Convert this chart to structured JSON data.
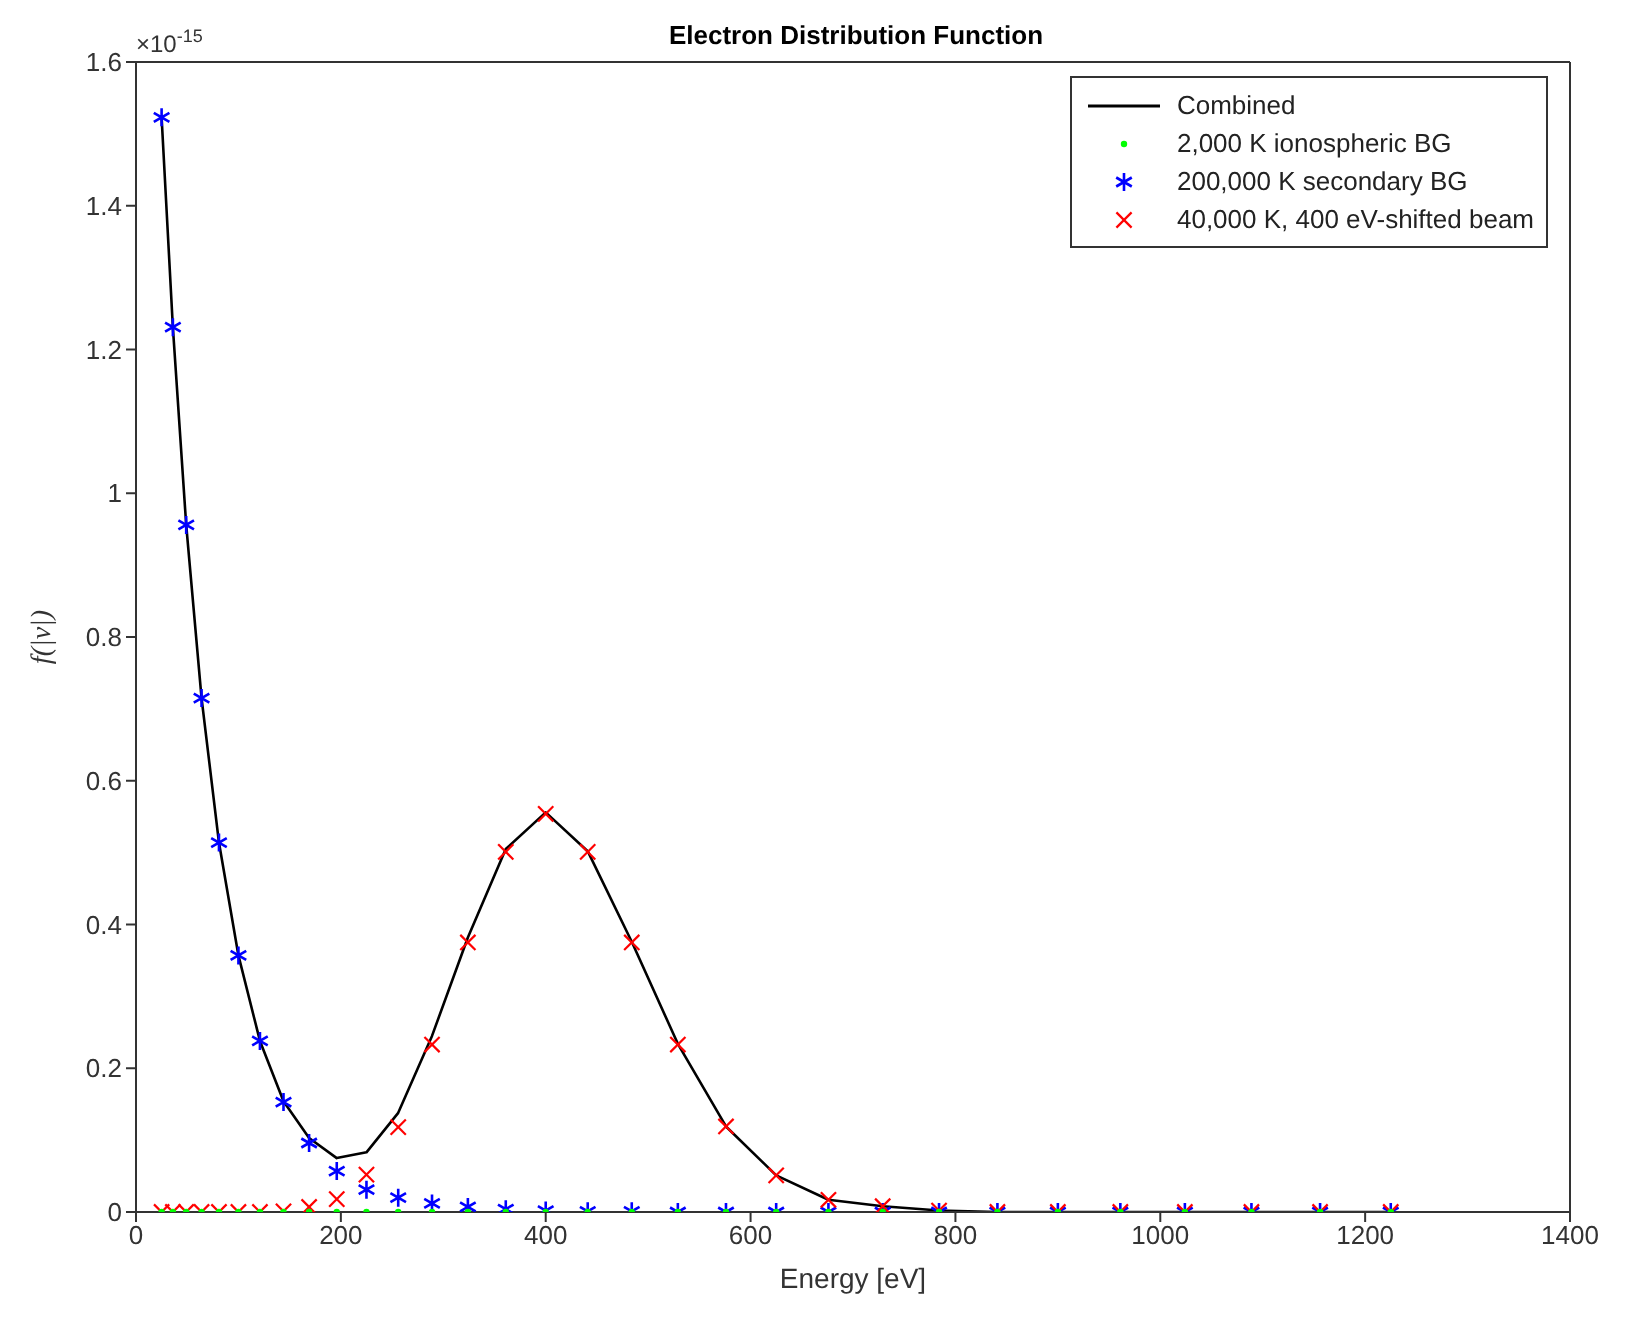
{
  "chart_data": {
    "type": "line",
    "title": "Electron Distribution Function",
    "xlabel": "Energy [eV]",
    "ylabel": "f(|v|)",
    "annotations": [
      "×10$^{-15}$"
    ],
    "x": [
      25,
      36,
      49,
      64,
      81,
      100,
      121,
      144,
      169,
      196,
      225,
      256,
      289,
      324,
      361,
      400,
      441,
      484,
      529,
      576,
      625,
      676,
      729,
      784,
      841,
      900,
      961,
      1024,
      1089,
      1156,
      1225
    ],
    "series": [
      {
        "name": "Combined",
        "color": "#000000",
        "values": [
          1.523,
          1.231,
          0.956,
          0.715,
          0.514,
          0.357,
          0.238,
          0.154,
          0.103,
          0.075,
          0.083,
          0.138,
          0.245,
          0.382,
          0.505,
          0.556,
          0.502,
          0.376,
          0.234,
          0.119,
          0.051,
          0.017,
          0.008,
          0.002,
          0,
          0,
          0,
          0,
          0,
          0,
          0
        ]
      },
      {
        "name": "2,000 K ionospheric BG",
        "type": "scatter",
        "marker": "circle",
        "color": "#00ff00",
        "values": [
          0,
          0,
          0,
          0,
          0,
          0,
          0,
          0,
          0,
          0,
          0,
          0,
          0,
          0,
          0,
          0,
          0,
          0,
          0,
          0,
          0,
          0,
          0,
          0,
          0,
          0,
          0,
          0,
          0,
          0,
          0
        ]
      },
      {
        "name": "200,000 K secondary BG",
        "type": "scatter",
        "color": "#0000ff",
        "values": [
          1.523,
          1.231,
          0.956,
          0.715,
          0.514,
          0.357,
          0.238,
          0.153,
          0.096,
          0.057,
          0.031,
          0.02,
          0.012,
          0.007,
          0.004,
          0.002,
          0.001,
          0.001,
          0,
          0,
          0,
          0,
          0,
          0,
          0,
          0,
          0,
          0,
          0,
          0,
          0
        ]
      },
      {
        "name": "40,000 K, 400 eV-shifted beam",
        "type": "scatter",
        "marker": "cross",
        "color": "#ff0000",
        "values": [
          0,
          0,
          0,
          0,
          0,
          0,
          0,
          0.001,
          0.007,
          0.018,
          0.052,
          0.118,
          0.233,
          0.375,
          0.501,
          0.554,
          0.501,
          0.375,
          0.233,
          0.119,
          0.051,
          0.017,
          0.008,
          0.002,
          0,
          0,
          0,
          0,
          0,
          0,
          0
        ]
      }
    ],
    "xlim": [
      0,
      1400
    ],
    "xticks": [
      0,
      200,
      400,
      600,
      800,
      1000,
      1200,
      1400
    ],
    "ylim": [
      0,
      1.6
    ],
    "yticks": [
      0,
      0.2,
      0.4,
      0.6,
      0.8,
      1,
      1.2,
      1.4,
      1.6
    ],
    "grid": false,
    "legend": "top right"
  }
}
